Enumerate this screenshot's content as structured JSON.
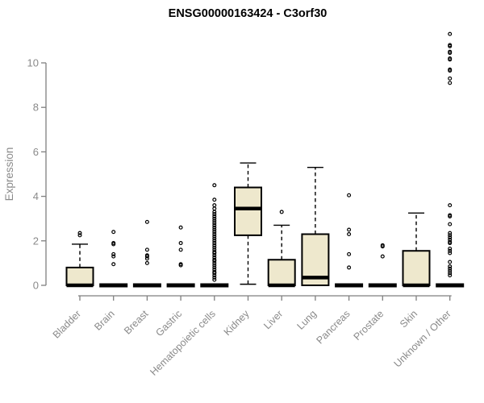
{
  "chart_data": {
    "type": "boxplot",
    "title": "ENSG00000163424 - C3orf30",
    "ylabel": "Expression",
    "xlabel": "",
    "yticks": [
      0,
      2,
      4,
      6,
      8,
      10
    ],
    "ylim": [
      -0.5,
      11.5
    ],
    "grid": false,
    "legend": false,
    "colors": {
      "box_fill": "#EEE8CD",
      "box_stroke": "#000000",
      "axis_line": "#7f7f7f",
      "axis_text": "#8a8a8a",
      "title_text": "#000000"
    },
    "categories": [
      "Bladder",
      "Brain",
      "Breast",
      "Gastric",
      "Hematopoietic cells",
      "Kidney",
      "Liver",
      "Lung",
      "Pancreas",
      "Prostate",
      "Skin",
      "Unknown / Other"
    ],
    "series": [
      {
        "label": "Bladder",
        "q1": 0,
        "median": 0,
        "q3": 0.8,
        "whisker_low": 0,
        "whisker_high": 1.85,
        "outliers": [
          2.25,
          2.35
        ]
      },
      {
        "label": "Brain",
        "q1": 0,
        "median": 0,
        "q3": 0,
        "whisker_low": 0,
        "whisker_high": 0,
        "outliers": [
          0.95,
          1.3,
          1.4,
          1.85,
          1.9,
          2.4
        ]
      },
      {
        "label": "Breast",
        "q1": 0,
        "median": 0,
        "q3": 0,
        "whisker_low": 0,
        "whisker_high": 0,
        "outliers": [
          1.0,
          1.2,
          1.3,
          1.35,
          1.6,
          2.85
        ]
      },
      {
        "label": "Gastric",
        "q1": 0,
        "median": 0,
        "q3": 0,
        "whisker_low": 0,
        "whisker_high": 0,
        "outliers": [
          0.9,
          0.95,
          1.6,
          1.9,
          2.6
        ]
      },
      {
        "label": "Hematopoietic cells",
        "q1": 0,
        "median": 0,
        "q3": 0,
        "whisker_low": 0,
        "whisker_high": 0,
        "outliers": [
          0.25,
          0.35,
          0.45,
          0.55,
          0.6,
          0.7,
          0.8,
          0.9,
          1.0,
          1.1,
          1.15,
          1.25,
          1.35,
          1.45,
          1.5,
          1.6,
          1.7,
          1.8,
          1.9,
          2.0,
          2.1,
          2.2,
          2.3,
          2.4,
          2.5,
          2.6,
          2.7,
          2.8,
          2.9,
          3.0,
          3.1,
          3.2,
          3.3,
          3.45,
          3.6,
          3.85,
          4.5
        ]
      },
      {
        "label": "Kidney",
        "q1": 2.25,
        "median": 3.45,
        "q3": 4.4,
        "whisker_low": 0.05,
        "whisker_high": 5.5,
        "outliers": []
      },
      {
        "label": "Liver",
        "q1": 0,
        "median": 0,
        "q3": 1.15,
        "whisker_low": 0,
        "whisker_high": 2.7,
        "outliers": [
          3.3
        ]
      },
      {
        "label": "Lung",
        "q1": 0,
        "median": 0.35,
        "q3": 2.3,
        "whisker_low": 0,
        "whisker_high": 5.3,
        "outliers": []
      },
      {
        "label": "Pancreas",
        "q1": 0,
        "median": 0,
        "q3": 0,
        "whisker_low": 0,
        "whisker_high": 0,
        "outliers": [
          0.8,
          1.4,
          2.3,
          2.5,
          4.05
        ]
      },
      {
        "label": "Prostate",
        "q1": 0,
        "median": 0,
        "q3": 0,
        "whisker_low": 0,
        "whisker_high": 0,
        "outliers": [
          1.3,
          1.75,
          1.8
        ]
      },
      {
        "label": "Skin",
        "q1": 0,
        "median": 0,
        "q3": 1.55,
        "whisker_low": 0,
        "whisker_high": 3.25,
        "outliers": []
      },
      {
        "label": "Unknown / Other",
        "q1": 0,
        "median": 0,
        "q3": 0,
        "whisker_low": 0,
        "whisker_high": 0,
        "outliers": [
          0.45,
          0.55,
          0.65,
          0.75,
          0.85,
          1.05,
          1.45,
          1.55,
          1.65,
          1.9,
          1.95,
          2.05,
          2.15,
          2.25,
          2.35,
          2.75,
          3.1,
          3.15,
          3.6,
          9.1,
          9.3,
          9.65,
          9.7,
          10.15,
          10.2,
          10.45,
          10.5,
          10.75,
          10.8,
          11.3
        ]
      }
    ]
  }
}
